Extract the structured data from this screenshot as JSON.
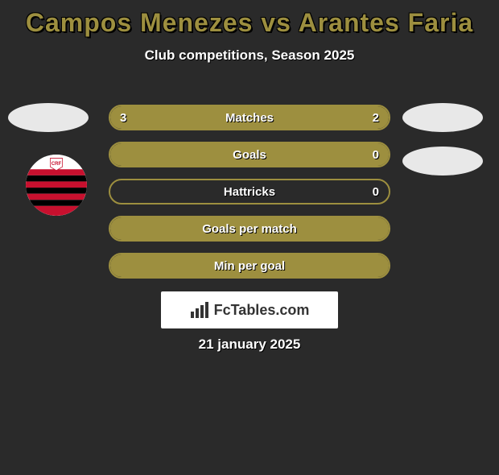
{
  "title": "Campos Menezes vs Arantes Faria",
  "title_color": "#9d8f3f",
  "subtitle": "Club competitions, Season 2025",
  "background_color": "#2a2a2a",
  "avatars": {
    "left_1_bg": "#e8e8e8",
    "right_1_bg": "#e8e8e8",
    "right_2_bg": "#e8e8e8"
  },
  "club_logo": {
    "stripes": [
      "#c8102e",
      "#000000"
    ],
    "shield_bg": "#ffffff"
  },
  "stats": {
    "border_color": "#9d8f3f",
    "fill_color": "#9d8f3f",
    "rows": [
      {
        "label": "Matches",
        "left": "3",
        "right": "2",
        "left_pct": 60,
        "right_pct": 40,
        "show_left": true,
        "show_right": true
      },
      {
        "label": "Goals",
        "left": "",
        "right": "0",
        "left_pct": 100,
        "right_pct": 0,
        "show_left": false,
        "show_right": true
      },
      {
        "label": "Hattricks",
        "left": "",
        "right": "0",
        "left_pct": 0,
        "right_pct": 0,
        "show_left": false,
        "show_right": true
      },
      {
        "label": "Goals per match",
        "left": "",
        "right": "",
        "left_pct": 100,
        "right_pct": 0,
        "show_left": false,
        "show_right": false
      },
      {
        "label": "Min per goal",
        "left": "",
        "right": "",
        "left_pct": 100,
        "right_pct": 0,
        "show_left": false,
        "show_right": false
      }
    ]
  },
  "brand": {
    "text": "FcTables.com"
  },
  "date": "21 january 2025"
}
